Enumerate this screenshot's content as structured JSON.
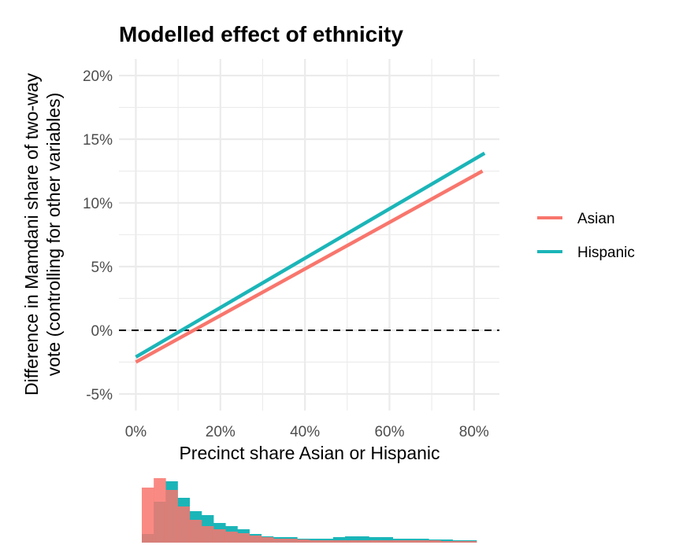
{
  "chart_data": [
    {
      "type": "line",
      "title": "Modelled effect of ethnicity",
      "xlabel": "Precinct share Asian or Hispanic",
      "ylabel": [
        "Difference in Mamdani share of two-way",
        "vote (controlling for other variables)"
      ],
      "xlim": [
        -4,
        86
      ],
      "ylim": [
        -6.3,
        21.3
      ],
      "grid": true,
      "x_ticks": [
        0,
        20,
        40,
        60,
        80
      ],
      "x_tick_labels": [
        "0%",
        "20%",
        "40%",
        "60%",
        "80%"
      ],
      "y_ticks": [
        -5,
        0,
        5,
        10,
        15,
        20
      ],
      "y_tick_labels": [
        "-5%",
        "0%",
        "5%",
        "10%",
        "15%",
        "20%"
      ],
      "reference_line": {
        "y": 0,
        "style": "dashed",
        "color": "#000000"
      },
      "legend": {
        "position": "right",
        "entries": [
          "Asian",
          "Hispanic"
        ]
      },
      "series": [
        {
          "name": "Asian",
          "color": "#F8766D",
          "x": [
            0,
            82
          ],
          "y": [
            -2.5,
            12.5
          ]
        },
        {
          "name": "Hispanic",
          "color": "#1BB5B8",
          "x": [
            0,
            82.5
          ],
          "y": [
            -2.1,
            13.9
          ]
        }
      ]
    },
    {
      "type": "bar",
      "subtype": "histogram",
      "title": "",
      "xlabel": "",
      "ylabel": "",
      "xlim": [
        0,
        82
      ],
      "bins": 28,
      "series": [
        {
          "name": "Asian",
          "color": "#F8766D",
          "values": [
            70,
            82,
            67,
            46,
            29,
            21,
            17,
            14,
            12,
            9,
            7,
            5,
            5,
            4,
            3,
            3,
            3,
            3,
            3,
            3,
            3,
            3,
            3,
            3,
            3,
            2,
            2,
            2
          ]
        },
        {
          "name": "Hispanic",
          "color": "#1BB5B8",
          "values": [
            11,
            52,
            78,
            57,
            40,
            35,
            25,
            21,
            17,
            11,
            8,
            7,
            7,
            5,
            5,
            5,
            7,
            8,
            8,
            7,
            7,
            5,
            5,
            5,
            4,
            4,
            3,
            3
          ]
        }
      ]
    }
  ]
}
